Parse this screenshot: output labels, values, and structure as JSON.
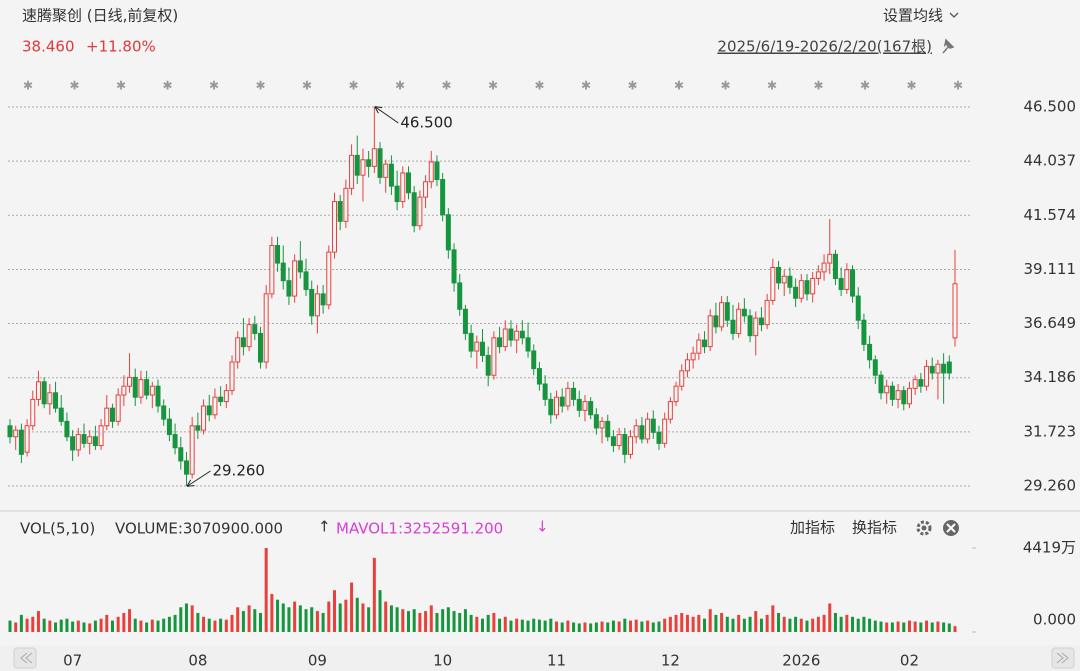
{
  "chart_data": {
    "type": "candlestick",
    "title": "速腾聚创 (日线,前复权)",
    "last": {
      "value": 38.46,
      "label": "38.460"
    },
    "change": {
      "value": 11.8,
      "label": "+11.80%"
    },
    "ma_setting": "设置均线",
    "range_label": "2025/6/19-2026/2/20(167根)",
    "up_color": "#e8413c",
    "down_color": "#16953f",
    "grid": true,
    "ylim": [
      29.26,
      46.5
    ],
    "yticks": [
      {
        "value": 46.5,
        "label": "46.500"
      },
      44.037,
      41.574,
      39.111,
      36.649,
      34.186,
      31.723,
      {
        "value": 29.26,
        "label": "29.260"
      }
    ],
    "annotations": [
      {
        "value": 46.5,
        "label": "46.500"
      },
      {
        "value": 29.26,
        "label": "29.260"
      }
    ],
    "categories": [
      null,
      null,
      null,
      null,
      null,
      null,
      null,
      null,
      null,
      null,
      null,
      "07",
      null,
      null,
      null,
      null,
      null,
      null,
      null,
      null,
      null,
      null,
      null,
      null,
      null,
      null,
      null,
      null,
      null,
      null,
      null,
      null,
      null,
      "08",
      null,
      null,
      null,
      null,
      null,
      null,
      null,
      null,
      null,
      null,
      null,
      null,
      null,
      null,
      null,
      null,
      null,
      null,
      null,
      null,
      "09",
      null,
      null,
      null,
      null,
      null,
      null,
      null,
      null,
      null,
      null,
      null,
      null,
      null,
      null,
      null,
      null,
      null,
      null,
      null,
      null,
      null,
      "10",
      null,
      null,
      null,
      null,
      null,
      null,
      null,
      null,
      null,
      null,
      null,
      null,
      null,
      null,
      null,
      null,
      null,
      null,
      null,
      "11",
      null,
      null,
      null,
      null,
      null,
      null,
      null,
      null,
      null,
      null,
      null,
      null,
      null,
      null,
      null,
      null,
      null,
      null,
      null,
      "12",
      null,
      null,
      null,
      null,
      null,
      null,
      null,
      null,
      null,
      null,
      null,
      null,
      null,
      null,
      null,
      null,
      null,
      null,
      null,
      null,
      null,
      null,
      "2026",
      null,
      null,
      null,
      null,
      null,
      null,
      null,
      null,
      null,
      null,
      null,
      null,
      null,
      null,
      null,
      null,
      null,
      null,
      "02",
      null,
      null,
      null,
      null,
      null,
      null,
      null,
      null
    ],
    "ohlc": [
      [
        32.0,
        32.3,
        31.2,
        31.5
      ],
      [
        31.5,
        32.0,
        30.9,
        31.8
      ],
      [
        31.8,
        32.1,
        30.3,
        30.7
      ],
      [
        30.8,
        32.3,
        30.6,
        32.0
      ],
      [
        32.0,
        33.6,
        31.8,
        33.2
      ],
      [
        33.2,
        34.5,
        32.9,
        34.0
      ],
      [
        34.0,
        34.2,
        32.8,
        33.0
      ],
      [
        33.0,
        33.9,
        32.5,
        33.5
      ],
      [
        33.5,
        34.0,
        32.6,
        32.8
      ],
      [
        32.8,
        33.4,
        32.0,
        32.2
      ],
      [
        32.2,
        32.6,
        31.3,
        31.5
      ],
      [
        31.5,
        31.8,
        30.4,
        30.9
      ],
      [
        30.9,
        31.9,
        30.6,
        31.6
      ],
      [
        31.6,
        32.1,
        31.0,
        31.2
      ],
      [
        31.2,
        31.8,
        30.7,
        31.5
      ],
      [
        31.5,
        32.0,
        30.9,
        31.1
      ],
      [
        31.1,
        32.3,
        30.9,
        32.0
      ],
      [
        32.0,
        33.4,
        31.8,
        32.8
      ],
      [
        32.8,
        33.0,
        31.9,
        32.2
      ],
      [
        32.2,
        33.7,
        32.0,
        33.4
      ],
      [
        33.4,
        34.3,
        32.9,
        33.8
      ],
      [
        33.8,
        35.3,
        33.5,
        34.2
      ],
      [
        34.2,
        34.6,
        32.9,
        33.3
      ],
      [
        33.3,
        34.5,
        33.0,
        34.1
      ],
      [
        34.1,
        34.5,
        33.2,
        33.4
      ],
      [
        33.4,
        34.0,
        32.8,
        33.8
      ],
      [
        33.8,
        34.1,
        32.6,
        32.9
      ],
      [
        32.9,
        33.2,
        32.0,
        32.3
      ],
      [
        32.3,
        32.8,
        31.3,
        31.6
      ],
      [
        31.6,
        32.1,
        30.7,
        31.0
      ],
      [
        31.0,
        31.5,
        30.0,
        30.4
      ],
      [
        30.4,
        30.8,
        29.26,
        29.8
      ],
      [
        29.8,
        32.4,
        29.6,
        32.0
      ],
      [
        32.0,
        32.6,
        31.4,
        31.8
      ],
      [
        31.8,
        33.2,
        31.6,
        32.9
      ],
      [
        32.9,
        33.4,
        32.2,
        32.5
      ],
      [
        32.5,
        33.7,
        32.3,
        33.3
      ],
      [
        33.3,
        33.8,
        32.9,
        33.1
      ],
      [
        33.1,
        33.9,
        32.8,
        33.6
      ],
      [
        33.6,
        35.2,
        33.4,
        34.9
      ],
      [
        34.9,
        36.3,
        34.6,
        36.0
      ],
      [
        36.0,
        36.9,
        35.2,
        35.6
      ],
      [
        35.6,
        36.9,
        35.4,
        36.6
      ],
      [
        36.6,
        37.0,
        35.9,
        36.2
      ],
      [
        36.2,
        36.5,
        34.6,
        34.9
      ],
      [
        34.9,
        38.4,
        34.6,
        38.0
      ],
      [
        38.0,
        40.6,
        37.8,
        40.2
      ],
      [
        40.2,
        40.6,
        39.0,
        39.4
      ],
      [
        39.4,
        40.2,
        38.2,
        38.6
      ],
      [
        38.6,
        39.2,
        37.5,
        37.9
      ],
      [
        37.9,
        39.8,
        37.6,
        39.5
      ],
      [
        39.5,
        40.4,
        38.7,
        39.0
      ],
      [
        39.0,
        39.6,
        37.9,
        38.2
      ],
      [
        38.2,
        38.6,
        36.6,
        37.0
      ],
      [
        37.0,
        38.4,
        36.2,
        38.0
      ],
      [
        38.0,
        38.4,
        37.1,
        37.5
      ],
      [
        37.5,
        40.2,
        37.3,
        39.9
      ],
      [
        39.9,
        42.6,
        39.6,
        42.2
      ],
      [
        42.2,
        42.5,
        40.9,
        41.3
      ],
      [
        41.3,
        43.2,
        41.0,
        42.8
      ],
      [
        42.8,
        44.8,
        42.5,
        44.3
      ],
      [
        44.3,
        45.2,
        43.0,
        43.4
      ],
      [
        43.4,
        44.6,
        42.2,
        44.1
      ],
      [
        44.1,
        44.5,
        43.3,
        43.8
      ],
      [
        43.8,
        46.5,
        43.5,
        44.6
      ],
      [
        44.6,
        44.9,
        43.0,
        43.3
      ],
      [
        43.3,
        44.1,
        42.6,
        43.9
      ],
      [
        43.9,
        44.3,
        42.5,
        42.9
      ],
      [
        42.9,
        43.6,
        41.8,
        42.2
      ],
      [
        42.2,
        43.8,
        41.9,
        43.5
      ],
      [
        43.5,
        43.8,
        42.3,
        42.6
      ],
      [
        42.6,
        42.9,
        40.8,
        41.1
      ],
      [
        41.1,
        42.7,
        40.9,
        42.4
      ],
      [
        42.4,
        43.4,
        41.9,
        43.1
      ],
      [
        43.1,
        44.5,
        42.8,
        44.0
      ],
      [
        44.0,
        44.3,
        42.9,
        43.2
      ],
      [
        43.2,
        43.5,
        41.3,
        41.6
      ],
      [
        41.6,
        41.9,
        39.6,
        40.0
      ],
      [
        40.0,
        40.3,
        38.1,
        38.5
      ],
      [
        38.5,
        38.9,
        37.0,
        37.3
      ],
      [
        37.3,
        37.5,
        35.9,
        36.2
      ],
      [
        36.2,
        36.6,
        35.1,
        35.4
      ],
      [
        35.4,
        36.1,
        34.6,
        35.8
      ],
      [
        35.8,
        36.4,
        34.9,
        35.2
      ],
      [
        35.2,
        35.6,
        33.8,
        34.3
      ],
      [
        34.3,
        36.3,
        34.1,
        36.0
      ],
      [
        36.0,
        36.5,
        35.3,
        35.6
      ],
      [
        35.6,
        36.8,
        35.4,
        36.4
      ],
      [
        36.4,
        36.8,
        35.6,
        35.9
      ],
      [
        35.9,
        36.6,
        35.3,
        36.3
      ],
      [
        36.3,
        36.8,
        35.7,
        36.0
      ],
      [
        36.0,
        36.7,
        35.1,
        35.4
      ],
      [
        35.4,
        35.7,
        34.3,
        34.6
      ],
      [
        34.6,
        34.9,
        33.6,
        33.9
      ],
      [
        33.9,
        34.3,
        32.9,
        33.2
      ],
      [
        33.2,
        33.5,
        32.1,
        32.5
      ],
      [
        32.5,
        33.6,
        32.3,
        33.3
      ],
      [
        33.3,
        33.7,
        32.6,
        32.9
      ],
      [
        32.9,
        34.0,
        32.7,
        33.7
      ],
      [
        33.7,
        34.0,
        32.9,
        33.2
      ],
      [
        33.2,
        33.6,
        32.4,
        32.7
      ],
      [
        32.7,
        33.4,
        32.2,
        33.1
      ],
      [
        33.1,
        33.3,
        32.3,
        32.5
      ],
      [
        32.5,
        32.8,
        31.6,
        31.9
      ],
      [
        31.9,
        32.4,
        31.2,
        32.2
      ],
      [
        32.2,
        32.5,
        31.3,
        31.5
      ],
      [
        31.5,
        31.8,
        30.8,
        31.1
      ],
      [
        31.1,
        31.9,
        30.9,
        31.6
      ],
      [
        31.6,
        31.9,
        30.3,
        30.7
      ],
      [
        30.7,
        31.8,
        30.5,
        31.5
      ],
      [
        31.5,
        32.3,
        31.2,
        32.0
      ],
      [
        32.0,
        32.4,
        31.2,
        31.4
      ],
      [
        31.4,
        32.6,
        31.2,
        32.3
      ],
      [
        32.3,
        32.7,
        31.4,
        31.7
      ],
      [
        31.7,
        32.0,
        30.9,
        31.2
      ],
      [
        31.2,
        32.6,
        31.0,
        32.3
      ],
      [
        32.3,
        33.3,
        32.1,
        33.1
      ],
      [
        33.1,
        34.0,
        32.9,
        33.8
      ],
      [
        33.8,
        34.8,
        33.6,
        34.5
      ],
      [
        34.5,
        35.3,
        34.2,
        35.0
      ],
      [
        35.0,
        35.6,
        34.6,
        35.3
      ],
      [
        35.3,
        36.2,
        35.0,
        35.9
      ],
      [
        35.9,
        36.3,
        35.3,
        35.6
      ],
      [
        35.6,
        37.3,
        35.4,
        37.0
      ],
      [
        37.0,
        37.6,
        36.2,
        36.5
      ],
      [
        36.5,
        37.9,
        36.3,
        37.6
      ],
      [
        37.6,
        37.9,
        36.5,
        36.8
      ],
      [
        36.8,
        37.5,
        35.9,
        36.2
      ],
      [
        36.2,
        37.6,
        36.0,
        37.3
      ],
      [
        37.3,
        37.8,
        36.7,
        37.0
      ],
      [
        37.0,
        37.3,
        35.8,
        36.1
      ],
      [
        36.1,
        37.2,
        35.2,
        36.9
      ],
      [
        36.9,
        37.4,
        36.3,
        36.6
      ],
      [
        36.6,
        38.0,
        36.4,
        37.7
      ],
      [
        37.7,
        39.6,
        37.5,
        39.2
      ],
      [
        39.2,
        39.5,
        38.2,
        38.5
      ],
      [
        38.5,
        39.1,
        37.9,
        38.8
      ],
      [
        38.8,
        39.2,
        38.0,
        38.3
      ],
      [
        38.3,
        38.7,
        37.4,
        37.8
      ],
      [
        37.8,
        38.9,
        37.6,
        38.6
      ],
      [
        38.6,
        38.9,
        37.7,
        38.0
      ],
      [
        38.0,
        39.0,
        37.6,
        38.7
      ],
      [
        38.7,
        39.3,
        38.4,
        39.0
      ],
      [
        39.0,
        39.8,
        38.6,
        39.4
      ],
      [
        39.4,
        41.4,
        38.9,
        39.8
      ],
      [
        39.8,
        40.0,
        38.4,
        38.7
      ],
      [
        38.7,
        39.2,
        37.9,
        38.2
      ],
      [
        38.2,
        39.4,
        38.0,
        39.1
      ],
      [
        39.1,
        39.3,
        37.6,
        37.9
      ],
      [
        37.9,
        38.3,
        36.4,
        36.8
      ],
      [
        36.8,
        37.1,
        35.4,
        35.7
      ],
      [
        35.7,
        36.1,
        34.6,
        35.0
      ],
      [
        35.0,
        35.2,
        33.9,
        34.3
      ],
      [
        34.3,
        34.5,
        33.2,
        33.5
      ],
      [
        33.5,
        34.1,
        33.0,
        33.8
      ],
      [
        33.8,
        34.0,
        32.9,
        33.2
      ],
      [
        33.2,
        33.9,
        32.8,
        33.6
      ],
      [
        33.6,
        33.8,
        32.7,
        33.0
      ],
      [
        33.0,
        34.0,
        32.8,
        33.7
      ],
      [
        33.7,
        34.3,
        33.4,
        34.1
      ],
      [
        34.1,
        34.4,
        33.5,
        33.8
      ],
      [
        33.8,
        35.0,
        33.6,
        34.7
      ],
      [
        34.7,
        35.1,
        34.1,
        34.4
      ],
      [
        34.4,
        35.0,
        33.2,
        34.8
      ],
      [
        34.8,
        35.3,
        33.0,
        34.4
      ],
      [
        34.9,
        35.2,
        34.1,
        34.4
      ],
      [
        36.0,
        40.0,
        35.6,
        38.46
      ]
    ],
    "volume": {
      "title": "VOL(5,10)",
      "volume_label": "VOLUME:3070900.000",
      "volume_arrow": "↑",
      "mavol_label": "MAVOL1:3252591.200",
      "mavol_arrow": "↓",
      "mavol_color": "#d63fd6",
      "add_indicator": "加指标",
      "switch_indicator": "换指标",
      "ylim": [
        0,
        4419
      ],
      "yticks": [
        {
          "value": 4419,
          "label": "4419万"
        },
        {
          "value": 0,
          "label": "0.000"
        }
      ],
      "values": [
        600,
        500,
        900,
        700,
        800,
        1100,
        700,
        600,
        500,
        650,
        700,
        550,
        600,
        500,
        450,
        600,
        700,
        900,
        600,
        800,
        1000,
        1200,
        700,
        600,
        500,
        650,
        600,
        700,
        800,
        900,
        1300,
        1500,
        1400,
        1000,
        800,
        700,
        600,
        700,
        650,
        900,
        1300,
        1100,
        1400,
        1200,
        1000,
        4419,
        2000,
        1700,
        1500,
        1300,
        1600,
        1400,
        1200,
        1300,
        1100,
        1000,
        1600,
        2200,
        1500,
        1700,
        2600,
        1800,
        1500,
        1300,
        3900,
        2200,
        1600,
        1400,
        1300,
        1200,
        1100,
        1200,
        1000,
        1100,
        1400,
        1000,
        1200,
        1300,
        1100,
        1000,
        1200,
        900,
        800,
        700,
        900,
        1000,
        700,
        800,
        600,
        700,
        650,
        600,
        700,
        650,
        600,
        700,
        550,
        500,
        600,
        500,
        450,
        500,
        450,
        500,
        550,
        500,
        600,
        550,
        700,
        600,
        650,
        550,
        600,
        500,
        550,
        700,
        800,
        900,
        1000,
        900,
        800,
        900,
        700,
        1200,
        900,
        1000,
        800,
        700,
        900,
        700,
        800,
        1100,
        700,
        900,
        1400,
        1000,
        800,
        700,
        800,
        700,
        600,
        700,
        800,
        900,
        1500,
        1000,
        800,
        900,
        800,
        700,
        800,
        700,
        600,
        550,
        500,
        500,
        550,
        500,
        600,
        550,
        500,
        600,
        500,
        550,
        500,
        450,
        307.09
      ]
    }
  }
}
